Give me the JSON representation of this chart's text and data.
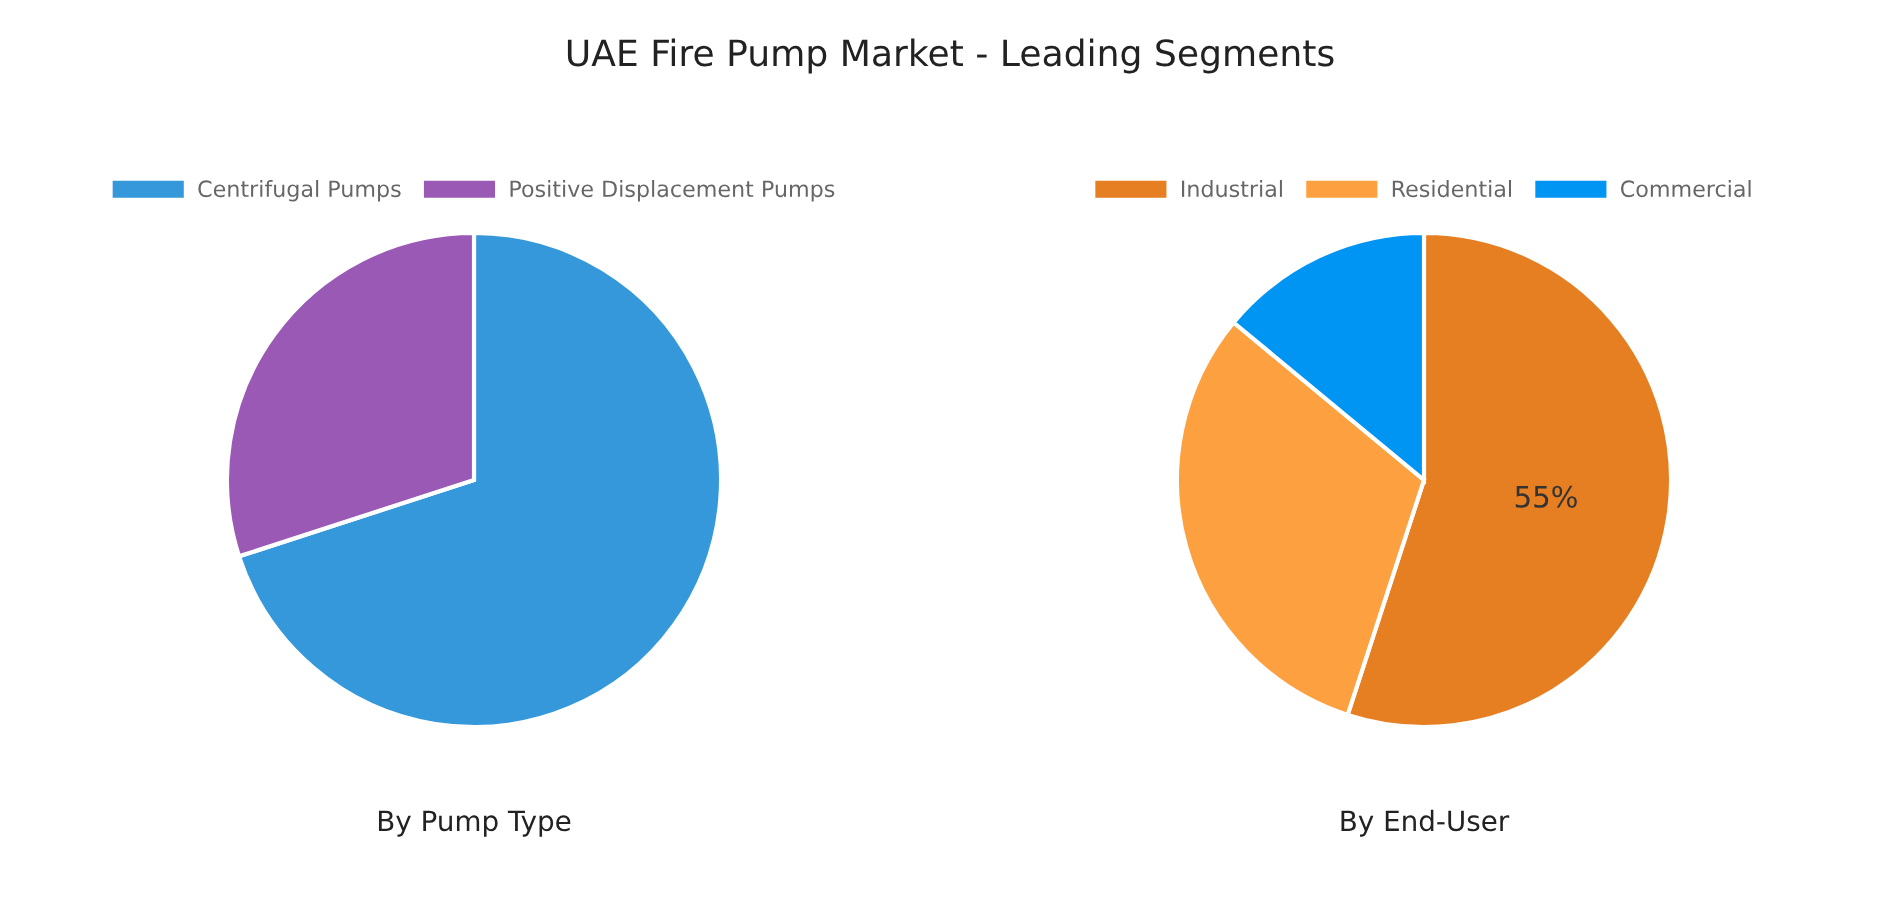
{
  "chart_data": [
    {
      "type": "pie",
      "title": "UAE Fire Pump Market - Leading Segments",
      "xlabel": "By Pump Type",
      "categories": [
        "Centrifugal Pumps",
        "Positive Displacement Pumps"
      ],
      "values": [
        70,
        30
      ],
      "colors": [
        "#3498db",
        "#9b59b6"
      ],
      "legend": "top"
    },
    {
      "type": "pie",
      "xlabel": "By End-User",
      "categories": [
        "Industrial",
        "Residential",
        "Commercial"
      ],
      "values": [
        55,
        31,
        14
      ],
      "colors": [
        "#e67e22",
        "#fda03f",
        "#0095f2"
      ],
      "value_labels": [
        "55%",
        null,
        null
      ],
      "legend": "top"
    }
  ]
}
